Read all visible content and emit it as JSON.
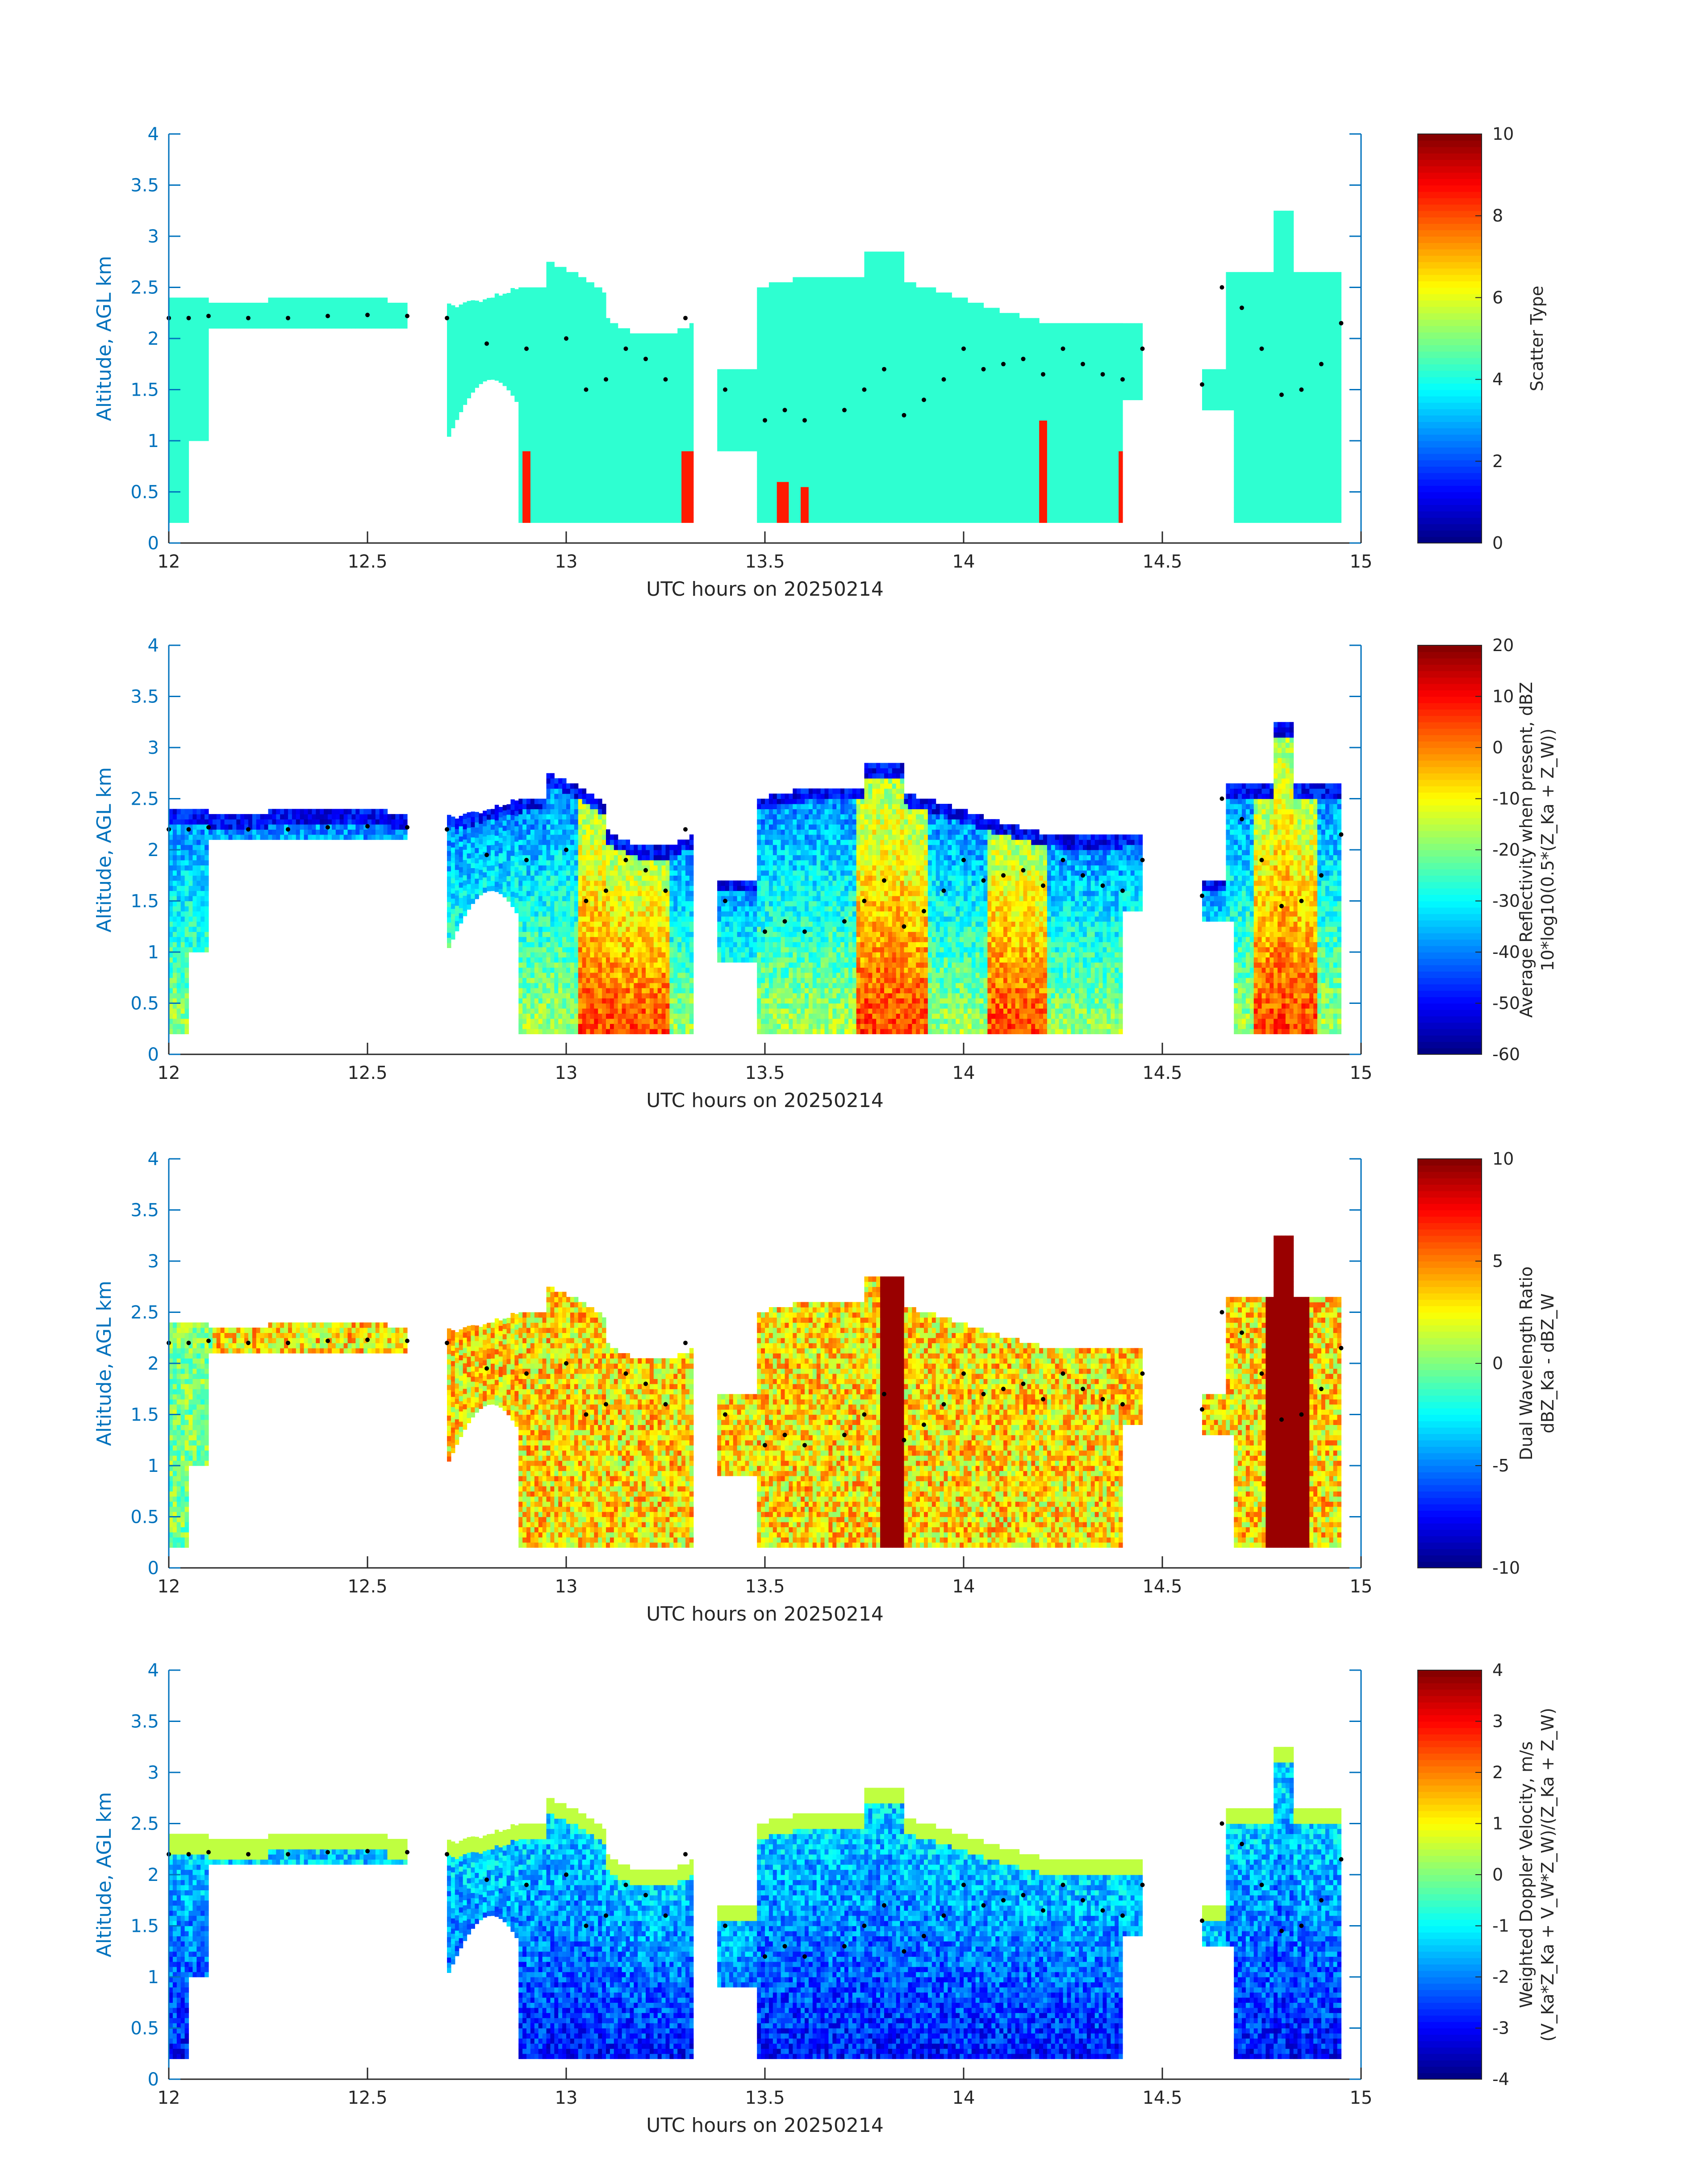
{
  "chart_data": [
    {
      "type": "heatmap",
      "xlabel": "UTC hours on 20250214",
      "ylabel": "Altitude, AGL km",
      "xlim": [
        12,
        15
      ],
      "ylim": [
        0,
        4
      ],
      "xticks": [
        "12",
        "12.5",
        "13",
        "13.5",
        "14",
        "14.5",
        "15"
      ],
      "yticks": [
        "0",
        "0.5",
        "1",
        "1.5",
        "2",
        "2.5",
        "3",
        "3.5",
        "4"
      ],
      "colorbar": {
        "label_lines": [
          "Scatter Type"
        ],
        "range": [
          0,
          10
        ],
        "ticks": [
          "0",
          "2",
          "4",
          "6",
          "8",
          "10"
        ]
      },
      "colormap": "jet",
      "field": "scatter",
      "segments": [
        {
          "start": 12.0,
          "end": 12.1,
          "top": 2.35
        },
        {
          "start": 12.1,
          "end": 12.6,
          "top": 2.35
        },
        {
          "start": 12.7,
          "end": 13.32,
          "top": 2.6
        },
        {
          "start": 13.38,
          "end": 14.45,
          "top": 2.85
        },
        {
          "start": 14.6,
          "end": 14.95,
          "top": 3.25
        }
      ],
      "dominant_value": 4.2,
      "precip_value": 8.5
    },
    {
      "type": "heatmap",
      "xlabel": "UTC hours on 20250214",
      "ylabel": "Altitude, AGL km",
      "xlim": [
        12,
        15
      ],
      "ylim": [
        0,
        4
      ],
      "xticks": [
        "12",
        "12.5",
        "13",
        "13.5",
        "14",
        "14.5",
        "15"
      ],
      "yticks": [
        "0",
        "0.5",
        "1",
        "1.5",
        "2",
        "2.5",
        "3",
        "3.5",
        "4"
      ],
      "colorbar": {
        "label_lines": [
          "Average Reflectivity when present, dBZ",
          "10*log10(0.5*(Z_Ka + Z_W))"
        ],
        "range": [
          -60,
          20
        ],
        "ticks": [
          "-60",
          "-50",
          "-40",
          "-30",
          "-20",
          "-10",
          "0",
          "10",
          "20"
        ]
      },
      "colormap": "jet",
      "field": "reflectivity"
    },
    {
      "type": "heatmap",
      "xlabel": "UTC hours on 20250214",
      "ylabel": "Altitude, AGL km",
      "xlim": [
        12,
        15
      ],
      "ylim": [
        0,
        4
      ],
      "xticks": [
        "12",
        "12.5",
        "13",
        "13.5",
        "14",
        "14.5",
        "15"
      ],
      "yticks": [
        "0",
        "0.5",
        "1",
        "1.5",
        "2",
        "2.5",
        "3",
        "3.5",
        "4"
      ],
      "colorbar": {
        "label_lines": [
          "Dual Wavelength Ratio",
          "dBZ_Ka - dBZ_W"
        ],
        "range": [
          -10,
          10
        ],
        "ticks": [
          "-10",
          "-5",
          "0",
          "5",
          "10"
        ]
      },
      "colormap": "jet",
      "field": "dwr"
    },
    {
      "type": "heatmap",
      "xlabel": "UTC hours on 20250214",
      "ylabel": "Altitude, AGL km",
      "xlim": [
        12,
        15
      ],
      "ylim": [
        0,
        4
      ],
      "xticks": [
        "12",
        "12.5",
        "13",
        "13.5",
        "14",
        "14.5",
        "15"
      ],
      "yticks": [
        "0",
        "0.5",
        "1",
        "1.5",
        "2",
        "2.5",
        "3",
        "3.5",
        "4"
      ],
      "colorbar": {
        "label_lines": [
          "Weighted Doppler Velocity, m/s",
          "(V_Ka*Z_Ka + V_W*Z_W)/(Z_Ka + Z_W)"
        ],
        "range": [
          -4,
          4
        ],
        "ticks": [
          "-4",
          "-3",
          "-2",
          "-1",
          "0",
          "1",
          "2",
          "3",
          "4"
        ]
      },
      "colormap": "jet",
      "field": "velocity"
    }
  ],
  "cloud_top_points": {
    "description_type": "dots",
    "x": [
      12.0,
      12.05,
      12.1,
      12.2,
      12.3,
      12.4,
      12.5,
      12.6,
      12.7,
      12.8,
      12.9,
      13.0,
      13.05,
      13.1,
      13.15,
      13.2,
      13.25,
      13.3,
      13.4,
      13.5,
      13.55,
      13.6,
      13.7,
      13.75,
      13.8,
      13.85,
      13.9,
      13.95,
      14.0,
      14.05,
      14.1,
      14.15,
      14.2,
      14.25,
      14.3,
      14.35,
      14.4,
      14.45,
      14.6,
      14.65,
      14.7,
      14.75,
      14.8,
      14.85,
      14.9,
      14.95
    ],
    "y": [
      2.2,
      2.2,
      2.22,
      2.2,
      2.2,
      2.22,
      2.23,
      2.22,
      2.2,
      1.95,
      1.9,
      2.0,
      1.5,
      1.6,
      1.9,
      1.8,
      1.6,
      2.2,
      1.5,
      1.2,
      1.3,
      1.2,
      1.3,
      1.5,
      1.7,
      1.25,
      1.4,
      1.6,
      1.9,
      1.7,
      1.75,
      1.8,
      1.65,
      1.9,
      1.75,
      1.65,
      1.6,
      1.9,
      1.55,
      2.5,
      2.3,
      1.9,
      1.45,
      1.5,
      1.75,
      2.15
    ]
  }
}
